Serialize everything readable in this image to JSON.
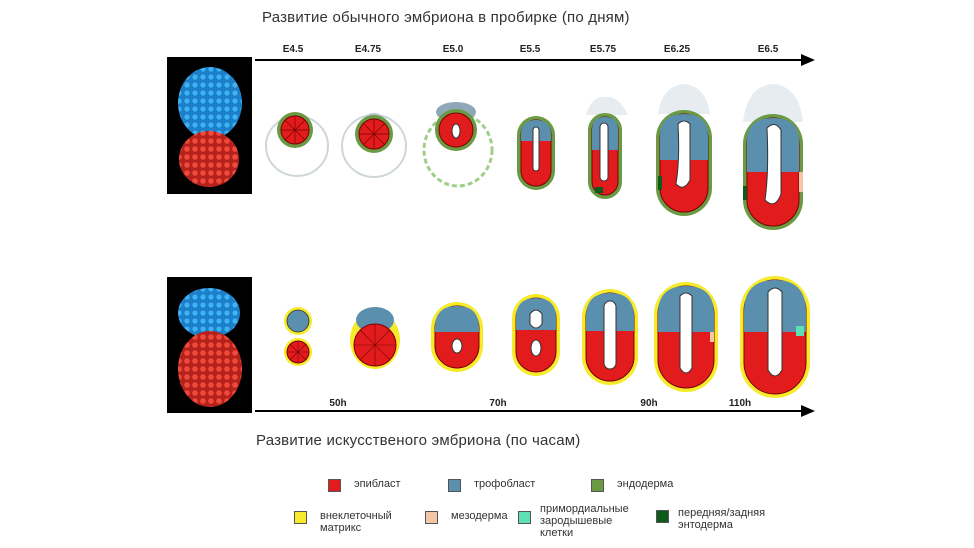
{
  "titles": {
    "top": "Развитие обычного эмбриона в пробирке (по дням)",
    "bottom": "Развитие искусственого эмбриона (по часам)"
  },
  "top_ticks": [
    "E4.5",
    "E4.75",
    "E5.0",
    "E5.5",
    "E5.75",
    "E6.25",
    "E6.5"
  ],
  "bottom_ticks": [
    "50h",
    "70h",
    "90h",
    "110h"
  ],
  "legend": [
    {
      "label": "эпибласт",
      "color": "#e21c1c"
    },
    {
      "label": "трофобласт",
      "color": "#5b8fae"
    },
    {
      "label": "эндодерма",
      "color": "#6b9a45"
    },
    {
      "label": "внеклеточный\nматрикс",
      "color": "#f6ea2a"
    },
    {
      "label": "мезодерма",
      "color": "#f3c7a8"
    },
    {
      "label": "примордиальные\nзародышевые\nклетки",
      "color": "#5ee0b4"
    },
    {
      "label": "передняя/задняя\nэнтодерма",
      "color": "#0e5a1a"
    }
  ]
}
